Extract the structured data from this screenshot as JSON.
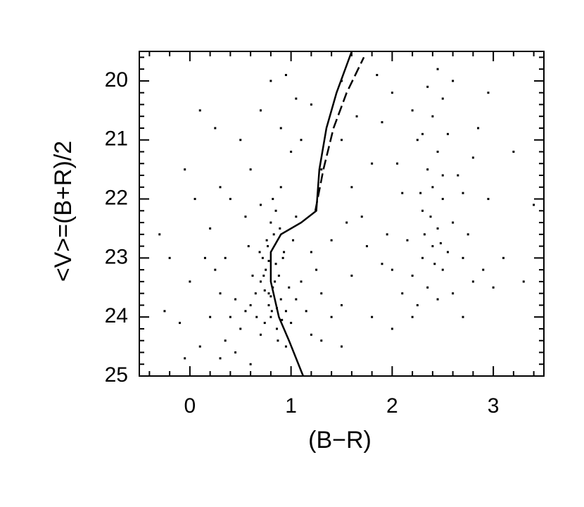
{
  "chart_data": {
    "type": "scatter",
    "x_label": "(B−R)",
    "y_label": "<V>=(B+R)/2",
    "xlim": [
      -0.5,
      3.5
    ],
    "ylim": [
      25,
      19.5
    ],
    "xticks": [
      0,
      1,
      2,
      3
    ],
    "yticks": [
      20,
      21,
      22,
      23,
      24,
      25
    ],
    "xminorticks": [
      -0.4,
      -0.2,
      0.2,
      0.4,
      0.6,
      0.8,
      1.2,
      1.4,
      1.6,
      1.8,
      2.2,
      2.4,
      2.6,
      2.8,
      3.2,
      3.4
    ],
    "yminorticks": [
      19.6,
      19.8,
      20.2,
      20.4,
      20.6,
      20.8,
      21.2,
      21.4,
      21.6,
      21.8,
      22.2,
      22.4,
      22.6,
      22.8,
      23.2,
      23.4,
      23.6,
      23.8,
      24.2,
      24.4,
      24.6,
      24.8
    ],
    "color": "#000000",
    "series": [
      {
        "type": "scatter",
        "x": [
          0.75,
          0.82,
          0.78,
          0.85,
          0.7,
          0.9,
          0.8,
          0.72,
          0.88,
          0.77,
          0.83,
          0.95,
          0.65,
          0.74,
          0.86,
          0.92,
          0.69,
          0.8,
          0.85,
          0.78,
          0.81,
          0.6,
          0.98,
          1.05,
          0.73,
          0.84,
          0.76,
          0.89,
          0.66,
          1.0,
          0.55,
          0.5,
          0.45,
          1.1,
          1.15,
          0.62,
          0.58,
          0.93,
          1.02,
          0.7,
          0.87,
          0.95,
          1.2,
          0.4,
          0.35,
          0.3,
          0.2,
          0.25,
          0.82,
          0.9,
          0.7,
          1.05,
          1.3,
          1.4,
          1.25,
          0.78,
          0.8,
          0.86,
          0.74,
          0.91,
          2.3,
          2.4,
          2.5,
          2.35,
          2.45,
          2.55,
          2.2,
          2.6,
          2.3,
          2.4,
          2.35,
          2.45,
          2.3,
          2.4,
          2.5,
          2.25,
          2.5,
          2.6,
          2.7,
          2.8,
          2.15,
          2.1,
          2.0,
          2.65,
          2.55,
          2.2,
          2.35,
          2.6,
          2.45,
          2.7,
          2.9,
          2.75,
          2.25,
          2.45,
          2.5,
          2.38,
          2.42,
          2.32,
          2.48,
          2.28,
          3.0,
          2.95,
          2.05,
          1.95,
          2.85,
          0.5,
          0.7,
          0.8,
          0.9,
          1.0,
          0.6,
          0.4,
          0.3,
          0.2,
          0.15,
          0.0,
          -0.1,
          -0.2,
          -0.3,
          0.1,
          0.25,
          -0.05,
          1.2,
          1.1,
          0.95,
          1.3,
          1.5,
          1.6,
          1.7,
          1.8,
          1.9,
          2.0,
          1.85,
          1.5,
          1.65,
          1.75,
          1.6,
          1.5,
          1.8,
          2.0,
          1.4,
          1.55,
          1.9,
          2.1,
          2.2,
          2.7,
          3.1,
          3.3,
          3.4,
          3.2,
          2.95,
          2.8,
          0.45,
          0.6,
          0.3,
          0.1,
          -0.05,
          1.3,
          1.5,
          0.55,
          0.35,
          0.05,
          -0.25,
          1.05,
          1.2
        ],
        "values": [
          23.2,
          23.5,
          23.8,
          23.1,
          23.4,
          23.7,
          24.0,
          23.0,
          23.3,
          22.8,
          22.6,
          23.9,
          23.6,
          24.1,
          24.2,
          23.0,
          22.9,
          22.4,
          22.2,
          23.6,
          23.9,
          23.8,
          23.5,
          23.7,
          23.3,
          23.4,
          22.7,
          22.5,
          24.0,
          24.1,
          23.9,
          24.2,
          23.7,
          23.4,
          23.9,
          23.3,
          22.8,
          22.9,
          22.7,
          24.3,
          24.4,
          24.5,
          24.3,
          24.0,
          24.4,
          23.6,
          24.0,
          23.2,
          22.0,
          21.8,
          22.1,
          22.3,
          23.6,
          24.0,
          23.2,
          23.05,
          23.65,
          23.85,
          23.55,
          24.05,
          23.0,
          22.8,
          23.2,
          23.5,
          22.5,
          22.9,
          23.3,
          23.6,
          22.2,
          21.8,
          21.5,
          21.2,
          20.9,
          20.6,
          20.3,
          21.0,
          22.0,
          22.4,
          23.0,
          23.4,
          22.7,
          23.6,
          23.2,
          21.6,
          20.9,
          20.5,
          20.1,
          20.0,
          19.8,
          21.9,
          23.2,
          22.6,
          23.8,
          23.7,
          21.6,
          22.3,
          23.1,
          22.6,
          22.75,
          21.9,
          23.5,
          22.0,
          21.4,
          22.6,
          20.8,
          21.0,
          20.5,
          20.0,
          20.8,
          21.2,
          21.5,
          22.0,
          21.8,
          22.5,
          23.0,
          23.4,
          24.1,
          23.0,
          22.6,
          20.5,
          20.8,
          21.5,
          20.4,
          21.0,
          19.9,
          21.5,
          21.0,
          21.8,
          22.3,
          21.4,
          20.7,
          20.2,
          19.9,
          20.0,
          20.6,
          22.8,
          23.3,
          23.8,
          24.0,
          24.2,
          22.7,
          22.4,
          23.1,
          21.9,
          24.0,
          24.0,
          23.0,
          23.4,
          22.1,
          21.2,
          20.2,
          21.3,
          24.6,
          24.8,
          24.7,
          24.5,
          24.7,
          24.4,
          24.5,
          22.3,
          23.0,
          22.0,
          23.9,
          20.3,
          22.9
        ]
      },
      {
        "type": "line",
        "x": [
          1.12,
          0.98,
          0.88,
          0.8,
          0.8,
          0.9,
          1.1,
          1.25,
          1.28,
          1.35,
          1.45,
          1.6
        ],
        "values": [
          25,
          24.4,
          24.0,
          23.4,
          22.9,
          22.6,
          22.4,
          22.2,
          21.5,
          20.8,
          20.2,
          19.5
        ]
      },
      {
        "type": "line",
        "dash": true,
        "x": [
          1.24,
          1.32,
          1.42,
          1.55,
          1.72
        ],
        "values": [
          22.2,
          21.5,
          20.8,
          20.2,
          19.6
        ]
      }
    ]
  }
}
